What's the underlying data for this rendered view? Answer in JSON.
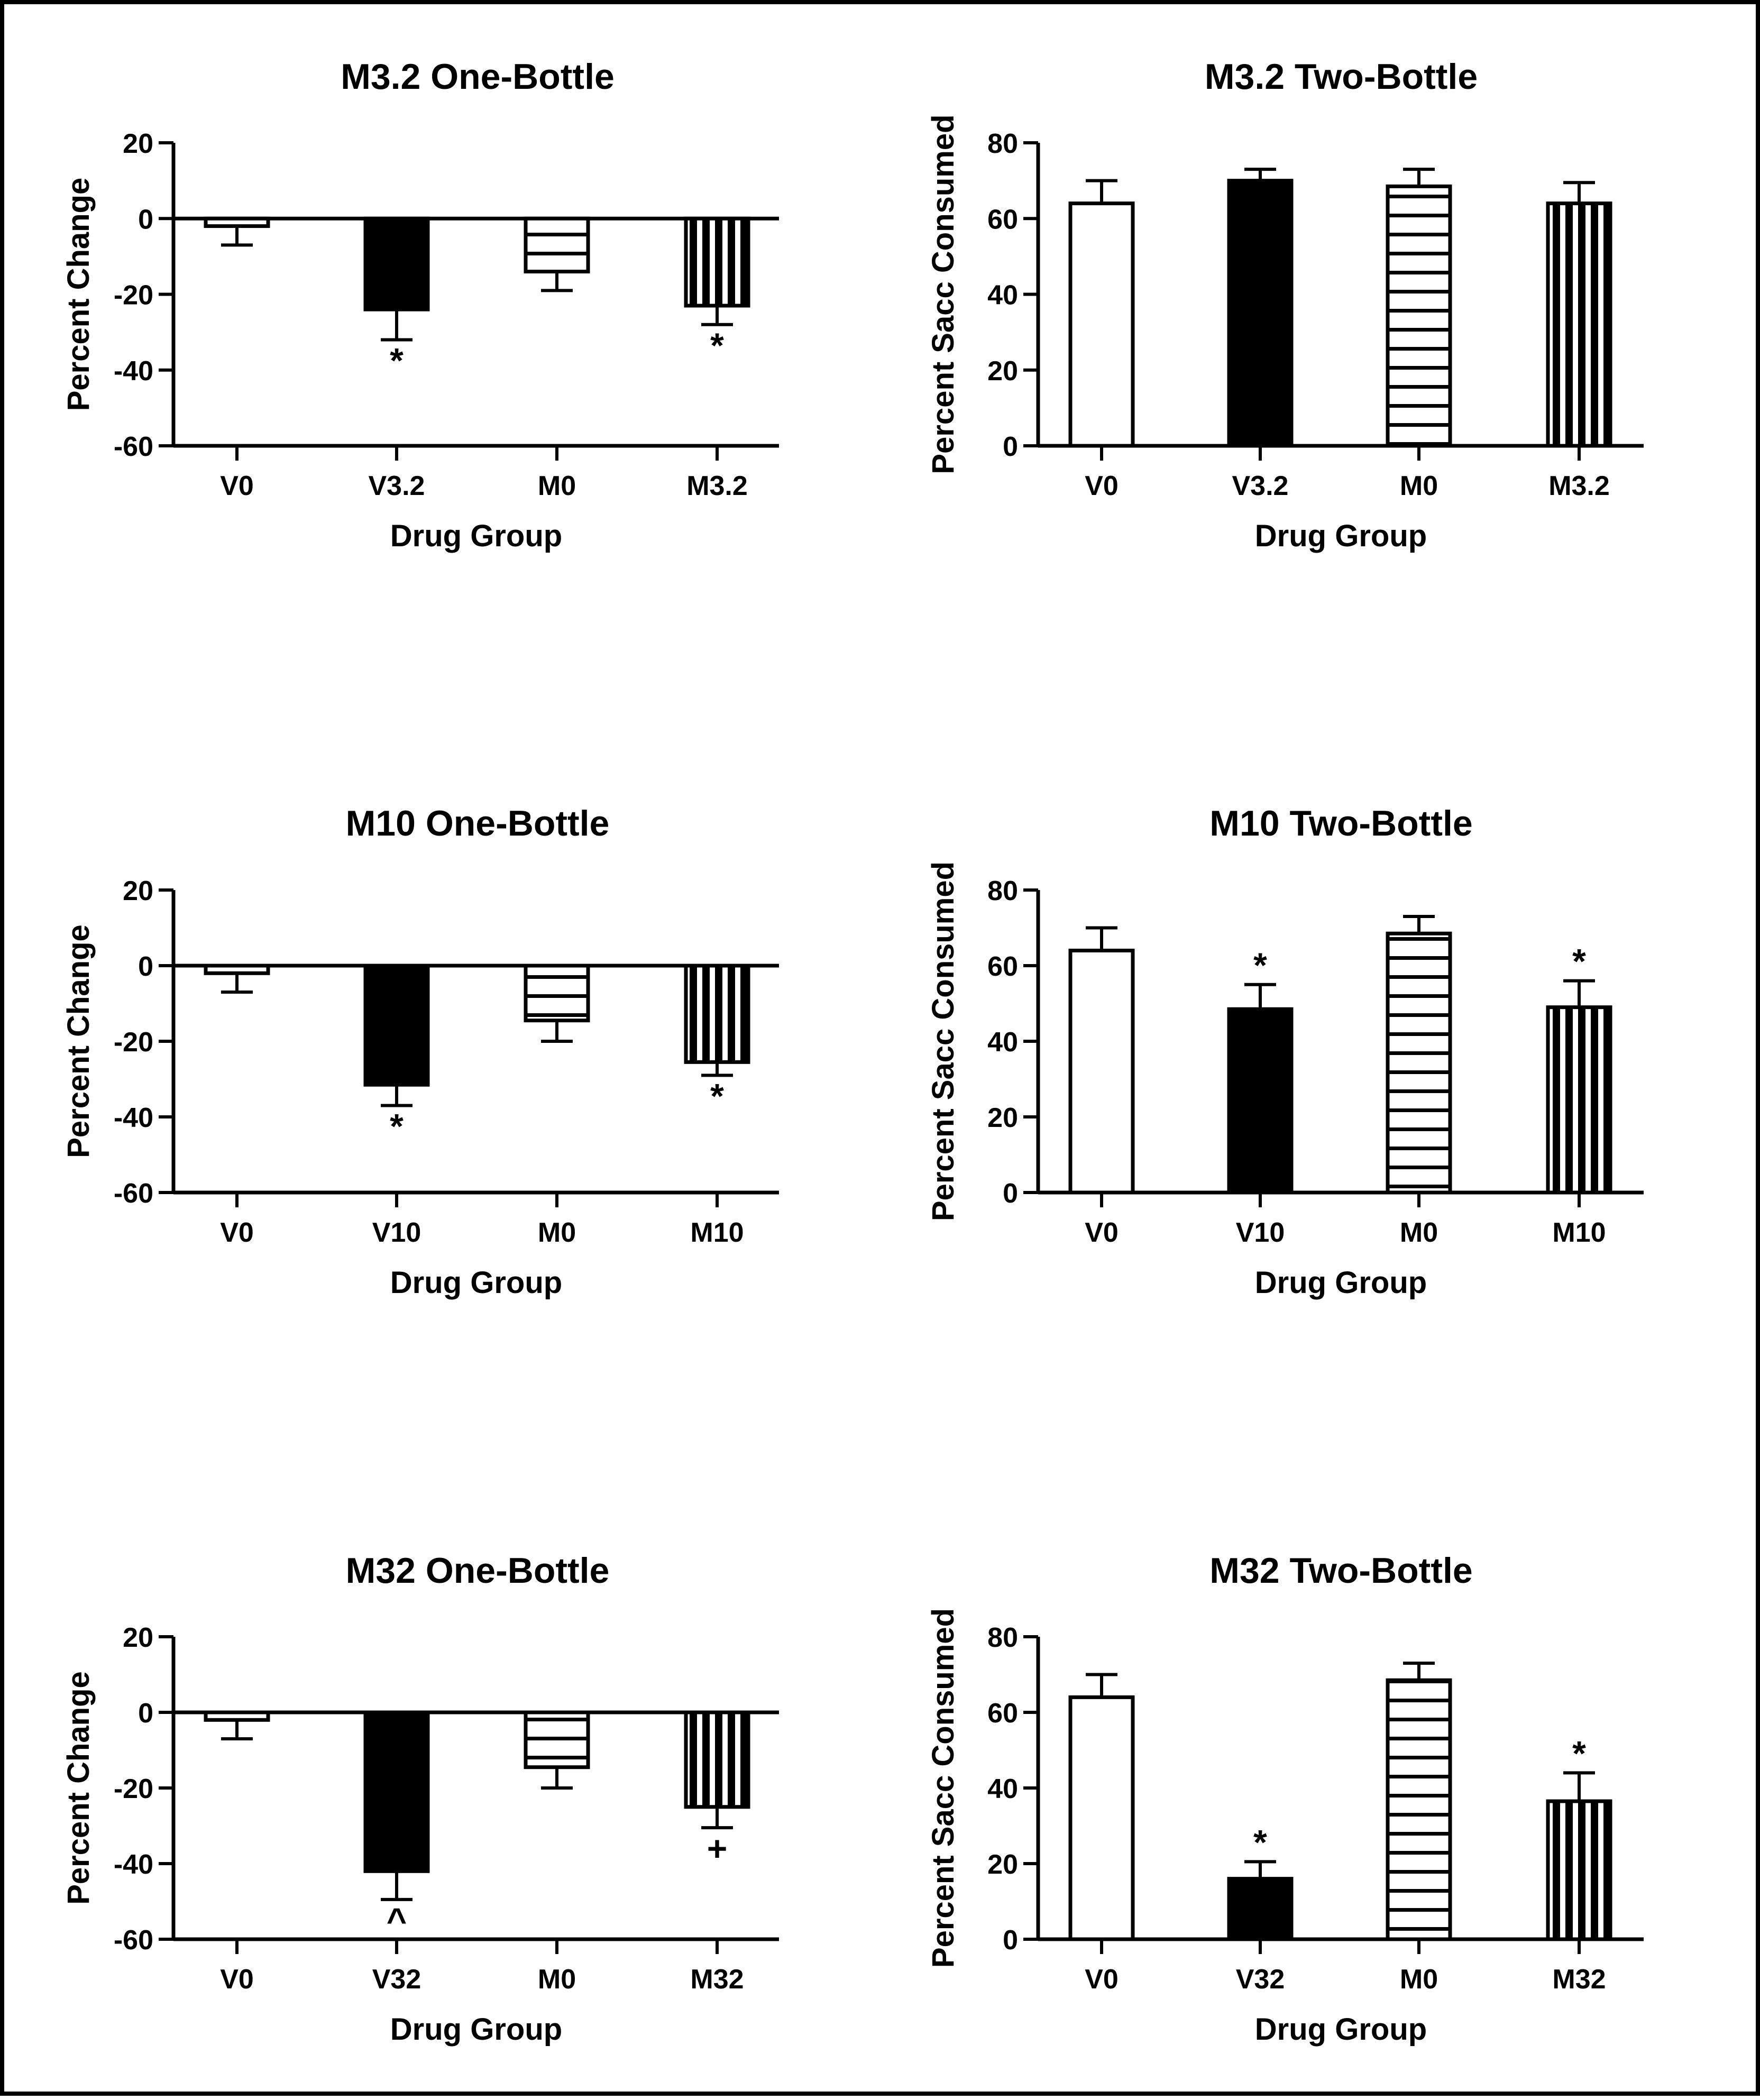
{
  "figure": {
    "background": "#ffffff",
    "border_color": "#000000"
  },
  "chart_data": [
    {
      "type": "bar",
      "id": "m32-one",
      "title": "M3.2 One-Bottle",
      "xlabel": "Drug Group",
      "ylabel": "Percent Change",
      "ylim": [
        -60,
        20
      ],
      "yticks": [
        20,
        0,
        -20,
        -40,
        -60
      ],
      "zero_line": true,
      "categories": [
        "V0",
        "V3.2",
        "M0",
        "M3.2"
      ],
      "values": [
        -2,
        -24,
        -14,
        -23
      ],
      "errors": [
        5,
        8,
        5,
        5
      ],
      "patterns": [
        "open",
        "solid",
        "horizontal",
        "vertical"
      ],
      "annotations": [
        "",
        "*",
        "",
        "*"
      ]
    },
    {
      "type": "bar",
      "id": "m32-two",
      "title": "M3.2 Two-Bottle",
      "xlabel": "Drug Group",
      "ylabel": "Percent Sacc Consumed",
      "ylim": [
        0,
        80
      ],
      "yticks": [
        80,
        60,
        40,
        20,
        0
      ],
      "zero_line": false,
      "categories": [
        "V0",
        "V3.2",
        "M0",
        "M3.2"
      ],
      "values": [
        64,
        70,
        68.5,
        64
      ],
      "errors": [
        6,
        3,
        4.5,
        5.5
      ],
      "patterns": [
        "open",
        "solid",
        "horizontal",
        "vertical"
      ],
      "annotations": [
        "",
        "",
        "",
        ""
      ]
    },
    {
      "type": "bar",
      "id": "m10-one",
      "title": "M10 One-Bottle",
      "xlabel": "Drug Group",
      "ylabel": "Percent Change",
      "ylim": [
        -60,
        20
      ],
      "yticks": [
        20,
        0,
        -20,
        -40,
        -60
      ],
      "zero_line": true,
      "categories": [
        "V0",
        "V10",
        "M0",
        "M10"
      ],
      "values": [
        -2,
        -31.5,
        -14.5,
        -25.5
      ],
      "errors": [
        5,
        5.5,
        5.5,
        3.5
      ],
      "patterns": [
        "open",
        "solid",
        "horizontal",
        "vertical"
      ],
      "annotations": [
        "",
        "*",
        "",
        "*"
      ]
    },
    {
      "type": "bar",
      "id": "m10-two",
      "title": "M10 Two-Bottle",
      "xlabel": "Drug Group",
      "ylabel": "Percent Sacc Consumed",
      "ylim": [
        0,
        80
      ],
      "yticks": [
        80,
        60,
        40,
        20,
        0
      ],
      "zero_line": false,
      "categories": [
        "V0",
        "V10",
        "M0",
        "M10"
      ],
      "values": [
        64,
        48.5,
        68.5,
        49
      ],
      "errors": [
        6,
        6.5,
        4.5,
        7
      ],
      "patterns": [
        "open",
        "solid",
        "horizontal",
        "vertical"
      ],
      "annotations": [
        "",
        "*",
        "",
        "*"
      ]
    },
    {
      "type": "bar",
      "id": "m32big-one",
      "title": "M32 One-Bottle",
      "xlabel": "Drug Group",
      "ylabel": "Percent Change",
      "ylim": [
        -60,
        20
      ],
      "yticks": [
        20,
        0,
        -20,
        -40,
        -60
      ],
      "zero_line": true,
      "categories": [
        "V0",
        "V32",
        "M0",
        "M32"
      ],
      "values": [
        -2,
        -42,
        -14.5,
        -25
      ],
      "errors": [
        5,
        7.5,
        5.5,
        5.5
      ],
      "patterns": [
        "open",
        "solid",
        "horizontal",
        "vertical"
      ],
      "annotations": [
        "",
        "^",
        "",
        "+"
      ]
    },
    {
      "type": "bar",
      "id": "m32big-two",
      "title": "M32 Two-Bottle",
      "xlabel": "Drug Group",
      "ylabel": "Percent Sacc Consumed",
      "ylim": [
        0,
        80
      ],
      "yticks": [
        80,
        60,
        40,
        20,
        0
      ],
      "zero_line": false,
      "categories": [
        "V0",
        "V32",
        "M0",
        "M32"
      ],
      "values": [
        64,
        16,
        68.5,
        36.5
      ],
      "errors": [
        6,
        4.5,
        4.5,
        7.5
      ],
      "patterns": [
        "open",
        "solid",
        "horizontal",
        "vertical"
      ],
      "annotations": [
        "",
        "*",
        "",
        "*"
      ]
    }
  ]
}
